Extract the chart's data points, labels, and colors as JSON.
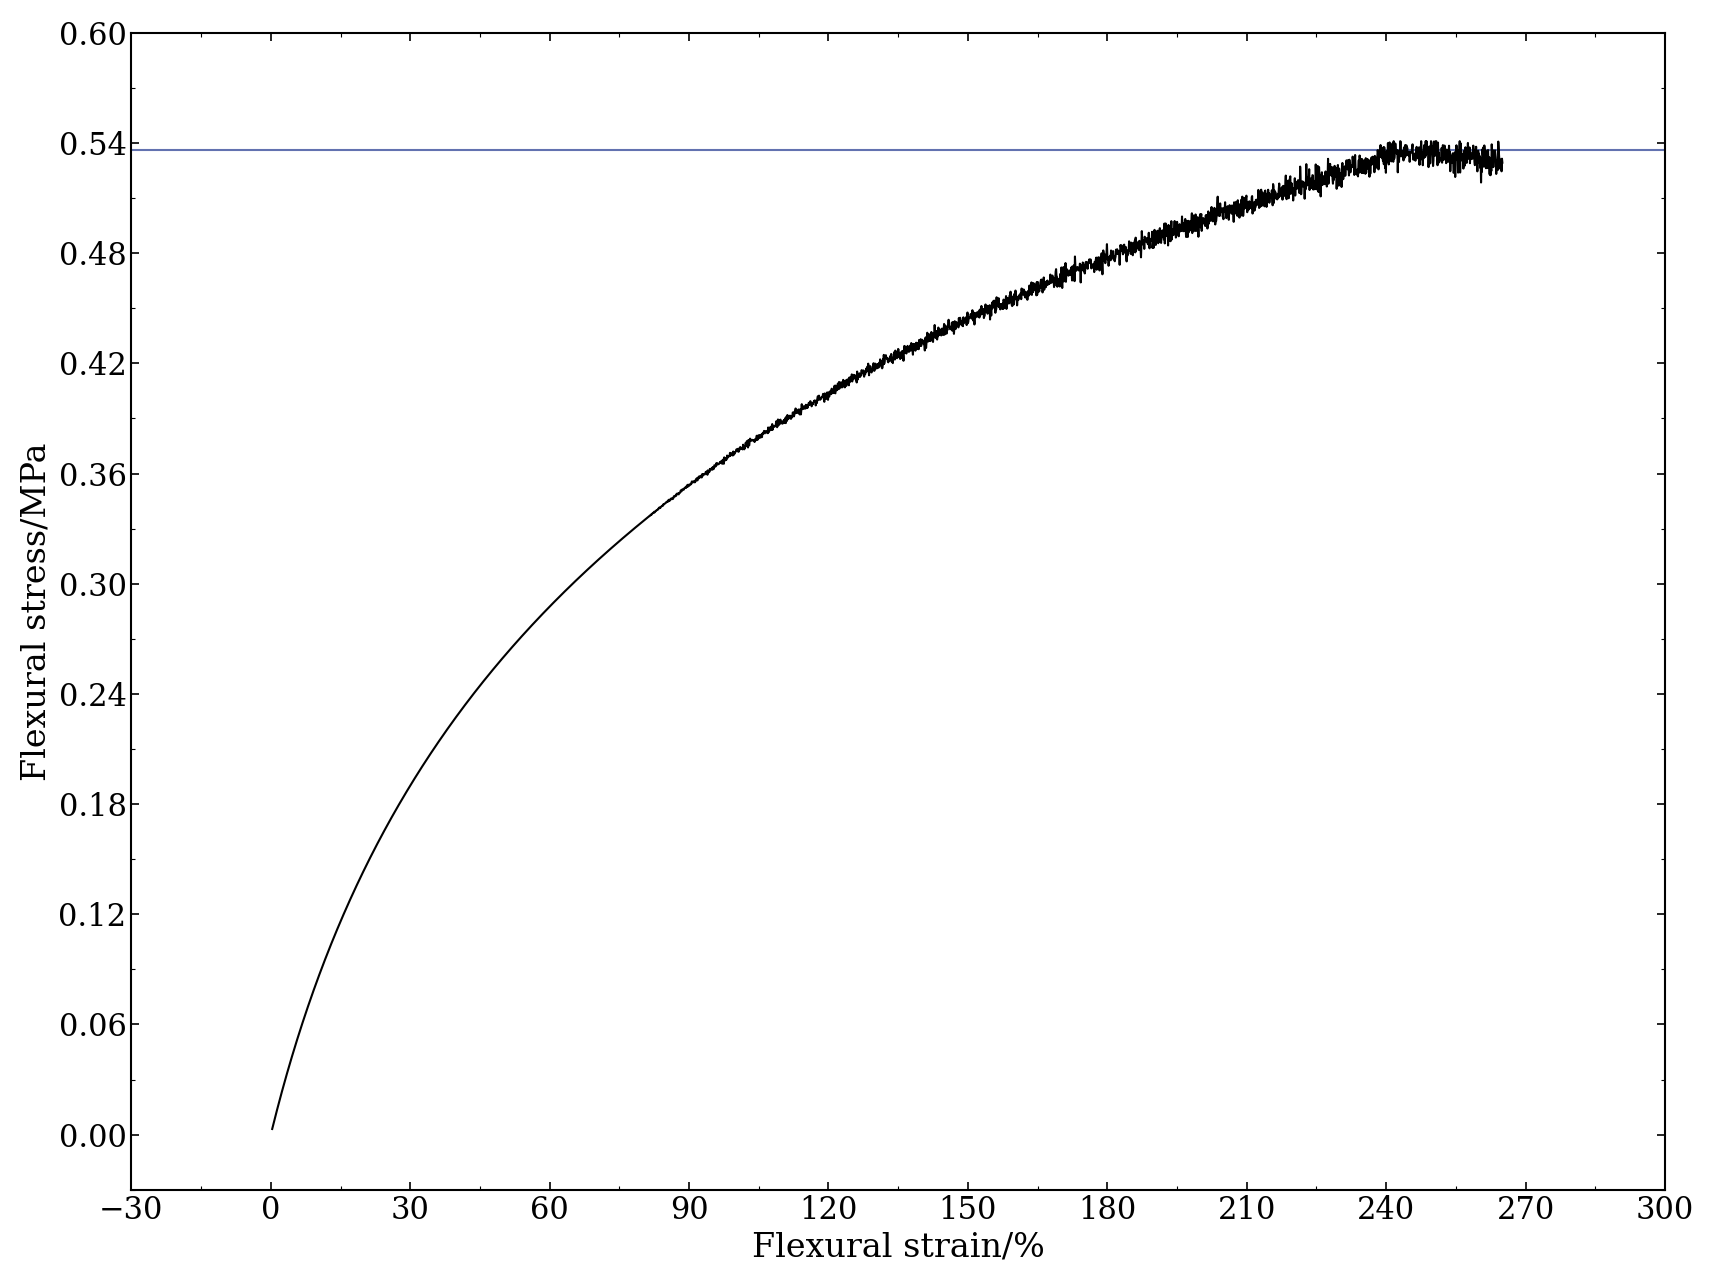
{
  "xlabel": "Flexural strain/%",
  "ylabel": "Flexural stress/MPa",
  "xlim": [
    -30,
    300
  ],
  "ylim": [
    -0.03,
    0.6
  ],
  "xticks": [
    -30,
    0,
    30,
    60,
    90,
    120,
    150,
    180,
    210,
    240,
    270,
    300
  ],
  "yticks": [
    0.0,
    0.06,
    0.12,
    0.18,
    0.24,
    0.3,
    0.36,
    0.42,
    0.48,
    0.54,
    0.6
  ],
  "curve_color": "#000000",
  "hline_color": "#6272b0",
  "hline_y": 0.536,
  "curve_start_x": 0.3,
  "curve_start_y": 0.002,
  "curve_peak_x": 245,
  "curve_peak_y": 0.536,
  "curve_end_x": 265,
  "curve_end_y": 0.53,
  "noise_scale": 0.004,
  "xlabel_fontsize": 24,
  "ylabel_fontsize": 24,
  "tick_fontsize": 22,
  "background_color": "#ffffff",
  "spine_color": "#000000",
  "linewidth": 1.5
}
